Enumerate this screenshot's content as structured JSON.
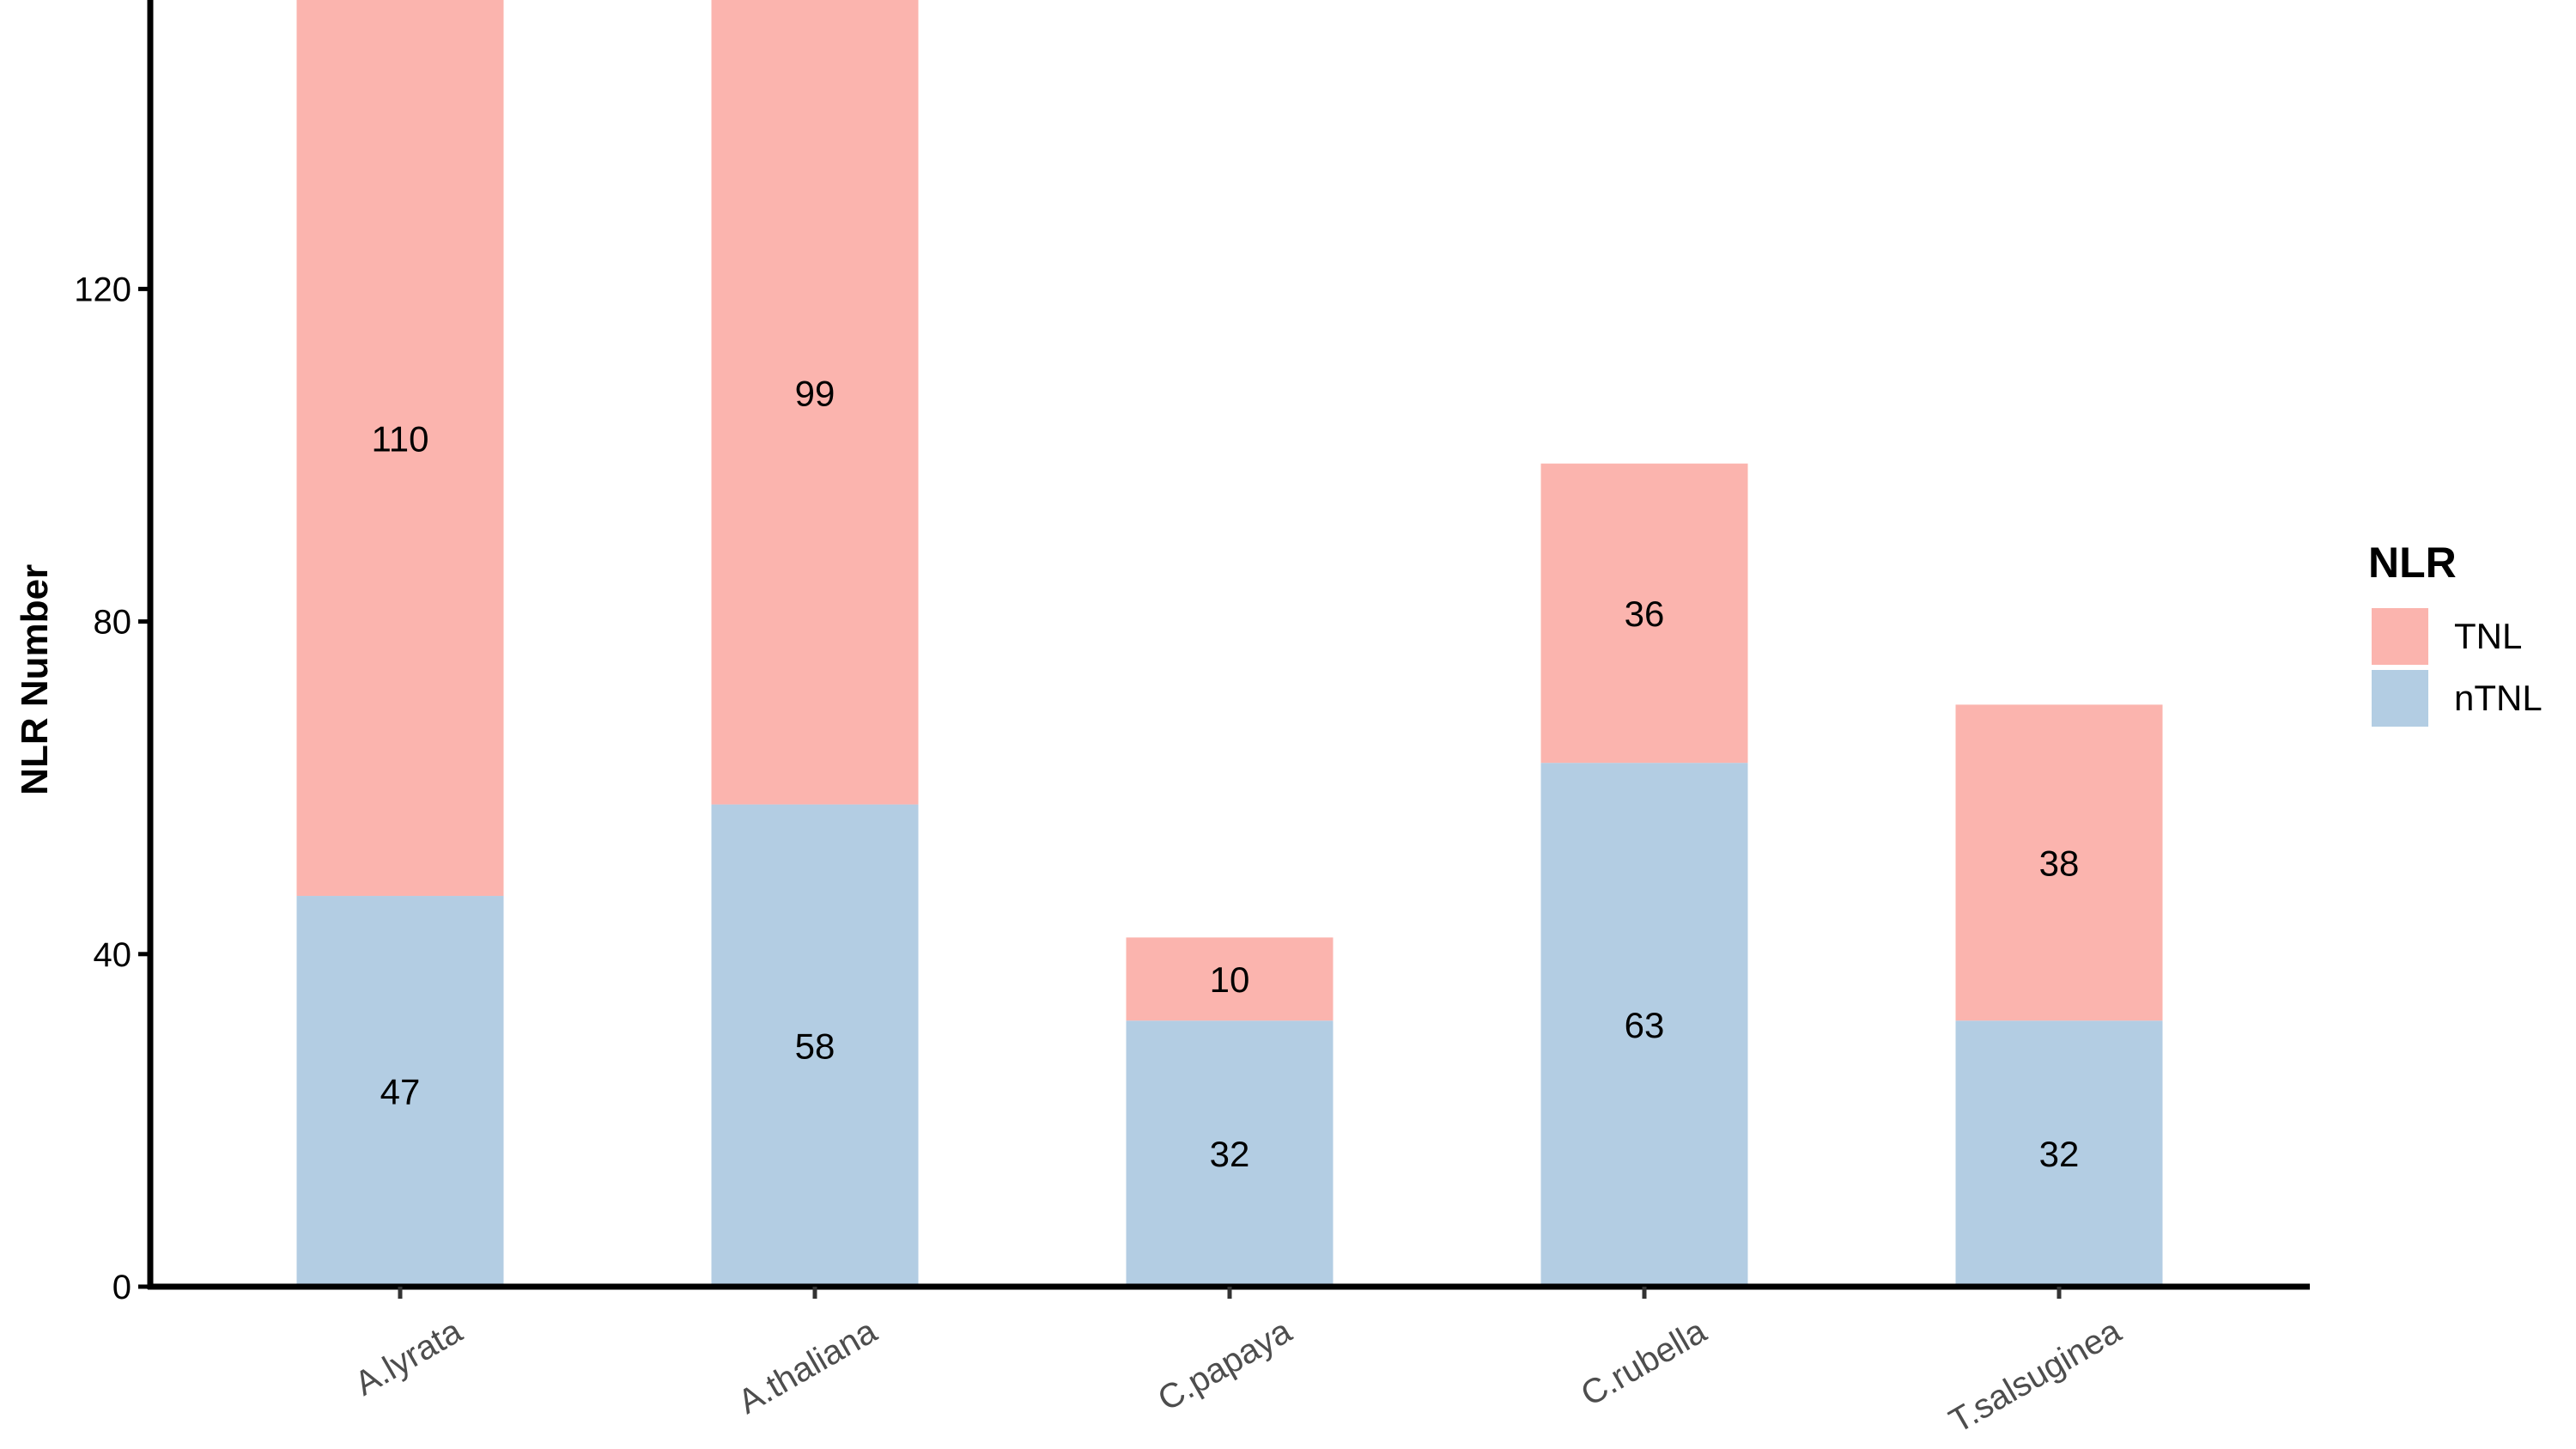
{
  "chart_data": {
    "type": "bar",
    "stacked": true,
    "categories": [
      "A.lyrata",
      "A.thaliana",
      "C.papaya",
      "C.rubella",
      "T.salsuginea"
    ],
    "series": [
      {
        "name": "nTNL",
        "values": [
          47,
          58,
          32,
          63,
          32
        ],
        "color": "#b3cde3"
      },
      {
        "name": "TNL",
        "values": [
          110,
          99,
          10,
          36,
          38
        ],
        "color": "#fbb4ae"
      }
    ],
    "ylabel": "NLR Number",
    "xlabel": "",
    "yticks": [
      0,
      40,
      80,
      120
    ],
    "ylim": [
      0,
      155
    ],
    "legend": {
      "title": "NLR",
      "position": "right",
      "entries": [
        {
          "label": "TNL",
          "color": "#fbb4ae"
        },
        {
          "label": "nTNL",
          "color": "#b3cde3"
        }
      ]
    }
  }
}
